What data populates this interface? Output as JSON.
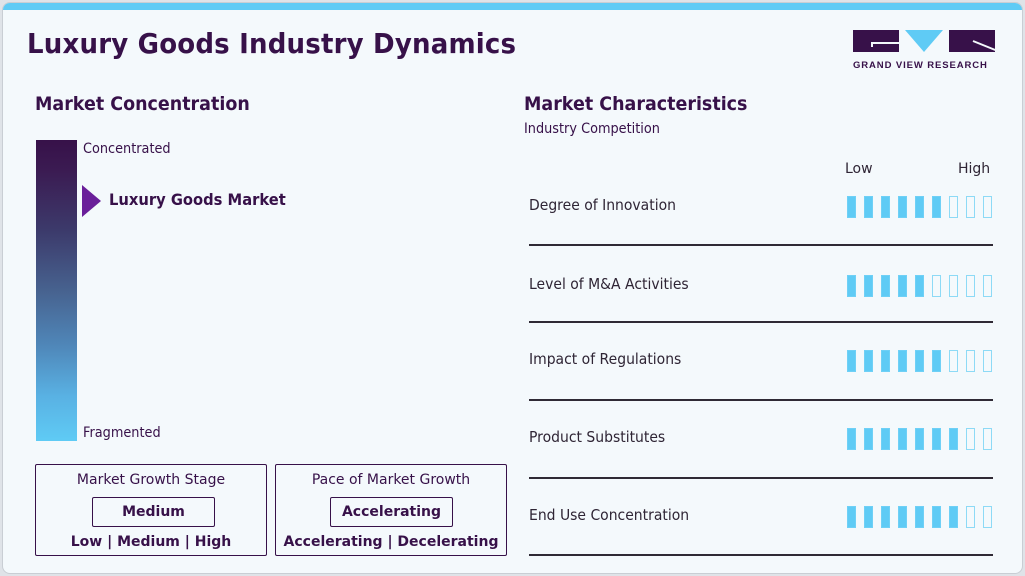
{
  "title": "Luxury Goods Industry Dynamics",
  "logo": {
    "text": "GRAND VIEW RESEARCH",
    "colors": {
      "primary": "#371149",
      "accent": "#5fcbf5"
    }
  },
  "concentration": {
    "heading": "Market Concentration",
    "top_label": "Concentrated",
    "bottom_label": "Fragmented",
    "marker_label": "Luxury Goods Market",
    "marker_position_pct": 25
  },
  "growth_stage": {
    "title": "Market Growth Stage",
    "value": "Medium",
    "options": "Low | Medium | High"
  },
  "growth_pace": {
    "title": "Pace of Market Growth",
    "value": "Accelerating",
    "options": "Accelerating | Decelerating"
  },
  "characteristics": {
    "heading": "Market Characteristics",
    "subheading": "Industry Competition",
    "scale_low": "Low",
    "scale_high": "High"
  },
  "chart_data": {
    "type": "bar",
    "title": "Market Characteristics - Industry Competition",
    "categories": [
      "Degree of Innovation",
      "Level of M&A Activities",
      "Impact of Regulations",
      "Product Substitutes",
      "End Use Concentration"
    ],
    "values": [
      6,
      5,
      6,
      7,
      7
    ],
    "max": 9,
    "scale_labels": [
      "Low",
      "High"
    ],
    "ylim": [
      0,
      9
    ]
  }
}
